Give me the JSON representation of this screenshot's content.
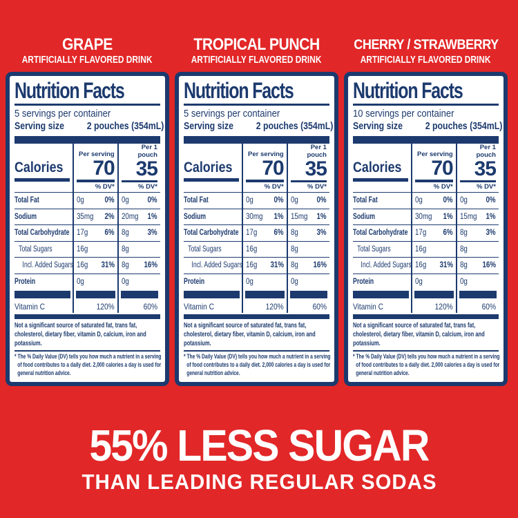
{
  "colors": {
    "background_red": "#e22728",
    "label_navy": "#1c3a6e",
    "text_white": "#ffffff"
  },
  "flavors": [
    {
      "name": "GRAPE",
      "subtitle": "ARTIFICIALLY FLAVORED DRINK"
    },
    {
      "name": "TROPICAL PUNCH",
      "subtitle": "ARTIFICIALLY FLAVORED DRINK"
    },
    {
      "name": "CHERRY / STRAWBERRY",
      "subtitle": "ARTIFICIALLY FLAVORED DRINK"
    }
  ],
  "panels": [
    {
      "title": "Nutrition Facts",
      "servings_per_container": "5 servings per container",
      "serving_size_label": "Serving size",
      "serving_size_value": "2 pouches (354mL)",
      "calories_label": "Calories",
      "per_serving_header": "Per serving",
      "per_pouch_header": "Per 1 pouch",
      "calories_per_serving": "70",
      "calories_per_pouch": "35",
      "dv_header": "% DV*",
      "rows": [
        {
          "label": "Total Fat",
          "bold": true,
          "indent": 0,
          "serving": "0g",
          "serving_dv": "0%",
          "pouch": "0g",
          "pouch_dv": "0%"
        },
        {
          "label": "Sodium",
          "bold": true,
          "indent": 0,
          "serving": "35mg",
          "serving_dv": "2%",
          "pouch": "20mg",
          "pouch_dv": "1%"
        },
        {
          "label": "Total Carbohydrate",
          "bold": true,
          "indent": 0,
          "serving": "17g",
          "serving_dv": "6%",
          "pouch": "8g",
          "pouch_dv": "3%"
        },
        {
          "label": "Total Sugars",
          "bold": false,
          "indent": 1,
          "serving": "16g",
          "serving_dv": "",
          "pouch": "8g",
          "pouch_dv": ""
        },
        {
          "label": "Incl. Added Sugars",
          "bold": false,
          "indent": 2,
          "serving": "16g",
          "serving_dv": "31%",
          "pouch": "8g",
          "pouch_dv": "16%"
        },
        {
          "label": "Protein",
          "bold": true,
          "indent": 0,
          "serving": "0g",
          "serving_dv": "",
          "pouch": "0g",
          "pouch_dv": ""
        }
      ],
      "vitamin_row": {
        "label": "Vitamin C",
        "serving": "120%",
        "pouch": "60%"
      },
      "footnote1": "Not a significant source of saturated fat, trans fat, cholesterol, dietary fiber, vitamin D, calcium, iron and potassium.",
      "footnote2": "* The % Daily Value (DV) tells you how much a nutrient in a serving of food contributes to a daily diet. 2,000 calories a day is used for general nutrition advice."
    },
    {
      "title": "Nutrition Facts",
      "servings_per_container": "5 servings per container",
      "serving_size_label": "Serving size",
      "serving_size_value": "2 pouches (354mL)",
      "calories_label": "Calories",
      "per_serving_header": "Per serving",
      "per_pouch_header": "Per 1 pouch",
      "calories_per_serving": "70",
      "calories_per_pouch": "35",
      "dv_header": "% DV*",
      "rows": [
        {
          "label": "Total Fat",
          "bold": true,
          "indent": 0,
          "serving": "0g",
          "serving_dv": "0%",
          "pouch": "0g",
          "pouch_dv": "0%"
        },
        {
          "label": "Sodium",
          "bold": true,
          "indent": 0,
          "serving": "30mg",
          "serving_dv": "1%",
          "pouch": "15mg",
          "pouch_dv": "1%"
        },
        {
          "label": "Total Carbohydrate",
          "bold": true,
          "indent": 0,
          "serving": "17g",
          "serving_dv": "6%",
          "pouch": "8g",
          "pouch_dv": "3%"
        },
        {
          "label": "Total Sugars",
          "bold": false,
          "indent": 1,
          "serving": "16g",
          "serving_dv": "",
          "pouch": "8g",
          "pouch_dv": ""
        },
        {
          "label": "Incl. Added Sugars",
          "bold": false,
          "indent": 2,
          "serving": "16g",
          "serving_dv": "31%",
          "pouch": "8g",
          "pouch_dv": "16%"
        },
        {
          "label": "Protein",
          "bold": true,
          "indent": 0,
          "serving": "0g",
          "serving_dv": "",
          "pouch": "0g",
          "pouch_dv": ""
        }
      ],
      "vitamin_row": {
        "label": "Vitamin C",
        "serving": "120%",
        "pouch": "60%"
      },
      "footnote1": "Not a significant source of saturated fat, trans fat, cholesterol, dietary fiber, vitamin D, calcium, iron and potassium.",
      "footnote2": "* The % Daily Value (DV) tells you how much a nutrient in a serving of food contributes to a daily diet. 2,000 calories a day is used for general nutrition advice."
    },
    {
      "title": "Nutrition Facts",
      "servings_per_container": "10 servings per container",
      "serving_size_label": "Serving size",
      "serving_size_value": "2 pouches (354mL)",
      "calories_label": "Calories",
      "per_serving_header": "Per serving",
      "per_pouch_header": "Per 1 pouch",
      "calories_per_serving": "70",
      "calories_per_pouch": "35",
      "dv_header": "% DV*",
      "rows": [
        {
          "label": "Total Fat",
          "bold": true,
          "indent": 0,
          "serving": "0g",
          "serving_dv": "0%",
          "pouch": "0g",
          "pouch_dv": "0%"
        },
        {
          "label": "Sodium",
          "bold": true,
          "indent": 0,
          "serving": "30mg",
          "serving_dv": "1%",
          "pouch": "15mg",
          "pouch_dv": "1%"
        },
        {
          "label": "Total Carbohydrate",
          "bold": true,
          "indent": 0,
          "serving": "17g",
          "serving_dv": "6%",
          "pouch": "8g",
          "pouch_dv": "3%"
        },
        {
          "label": "Total Sugars",
          "bold": false,
          "indent": 1,
          "serving": "16g",
          "serving_dv": "",
          "pouch": "8g",
          "pouch_dv": ""
        },
        {
          "label": "Incl. Added Sugars",
          "bold": false,
          "indent": 2,
          "serving": "16g",
          "serving_dv": "31%",
          "pouch": "8g",
          "pouch_dv": "16%"
        },
        {
          "label": "Protein",
          "bold": true,
          "indent": 0,
          "serving": "0g",
          "serving_dv": "",
          "pouch": "0g",
          "pouch_dv": ""
        }
      ],
      "vitamin_row": {
        "label": "Vitamin C",
        "serving": "120%",
        "pouch": "60%"
      },
      "footnote1": "Not a significant source of saturated fat, trans fat, cholesterol, dietary fiber, vitamin D, calcium, iron and potassium.",
      "footnote2": "* The % Daily Value (DV) tells you how much a nutrient in a serving of food contributes to a daily diet. 2,000 calories a day is used for general nutrition advice."
    }
  ],
  "banner": {
    "line1": "55% LESS SUGAR",
    "line2": "THAN LEADING REGULAR SODAS"
  }
}
